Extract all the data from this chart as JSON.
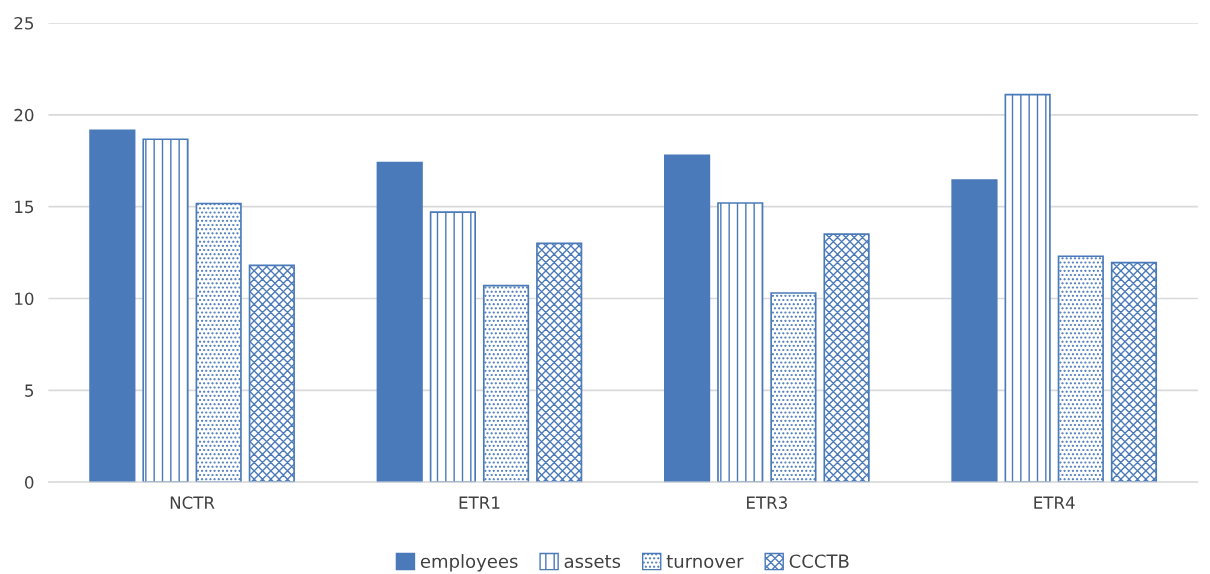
{
  "chart_data": {
    "type": "bar",
    "categories": [
      "NCTR",
      "ETR1",
      "ETR3",
      "ETR4"
    ],
    "series": [
      {
        "name": "employees",
        "color": "#4a7ab9",
        "values": [
          19.15,
          17.4,
          17.8,
          16.45
        ]
      },
      {
        "name": "assets",
        "color": "#4a7ab9",
        "values": [
          18.67,
          14.7,
          15.2,
          21.1
        ]
      },
      {
        "name": "turnover",
        "color": "#4a7ab9",
        "values": [
          15.17,
          10.7,
          10.3,
          12.3
        ]
      },
      {
        "name": "CCCTB",
        "color": "#4a7ab9",
        "values": [
          11.8,
          13.0,
          13.5,
          11.95
        ]
      }
    ],
    "ylim": [
      0,
      25
    ],
    "yticks": [
      0,
      5,
      10,
      15,
      20,
      25
    ],
    "grid": "y",
    "legend": "bottom"
  }
}
